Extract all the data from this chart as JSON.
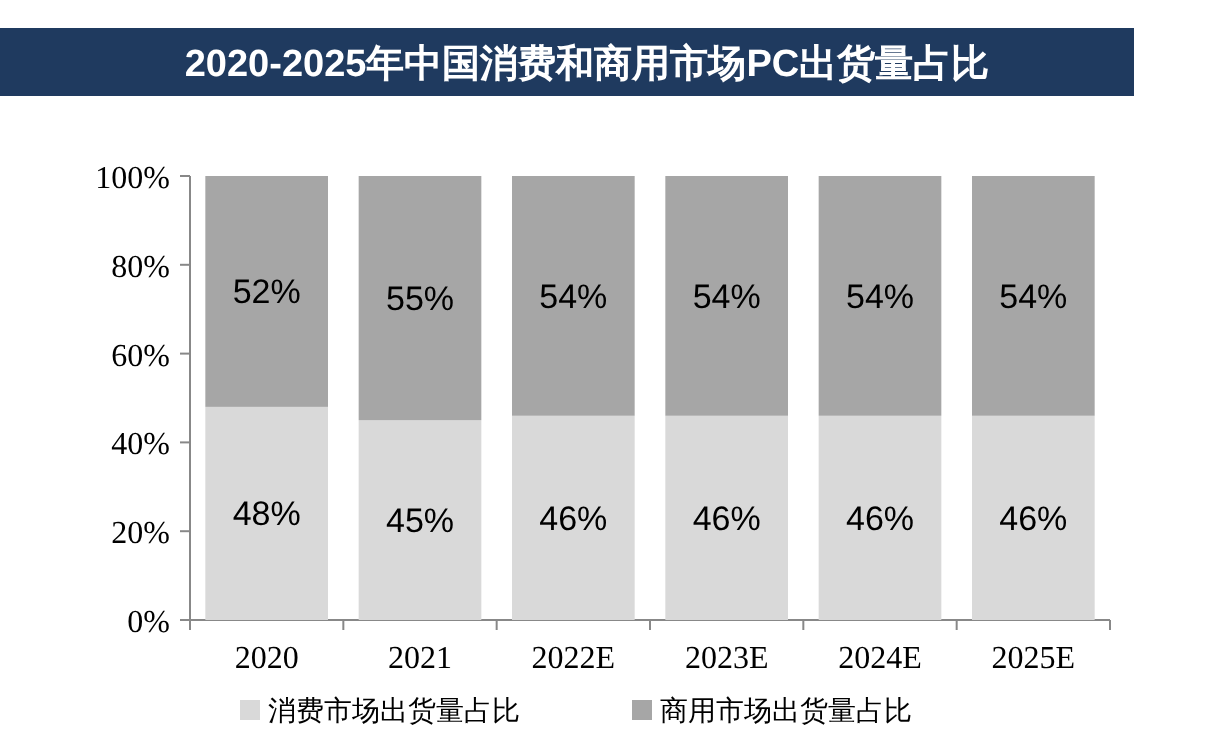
{
  "chart_data": {
    "type": "bar",
    "stacked": true,
    "title": "2020-2025年中国消费和商用市场PC出货量占比",
    "categories": [
      "2020",
      "2021",
      "2022E",
      "2023E",
      "2024E",
      "2025E"
    ],
    "series": [
      {
        "name": "消费市场出货量占比",
        "color": "#d9d9d9",
        "values": [
          48,
          45,
          46,
          46,
          46,
          46
        ],
        "value_labels": [
          "48%",
          "45%",
          "46%",
          "46%",
          "46%",
          "46%"
        ]
      },
      {
        "name": "商用市场出货量占比",
        "color": "#a6a6a6",
        "values": [
          52,
          55,
          54,
          54,
          54,
          54
        ],
        "value_labels": [
          "52%",
          "55%",
          "54%",
          "54%",
          "54%",
          "54%"
        ]
      }
    ],
    "ylim": [
      0,
      100
    ],
    "yticks": [
      {
        "value": 0,
        "label": "0%"
      },
      {
        "value": 20,
        "label": "20%"
      },
      {
        "value": 40,
        "label": "40%"
      },
      {
        "value": 60,
        "label": "60%"
      },
      {
        "value": 80,
        "label": "80%"
      },
      {
        "value": 100,
        "label": "100%"
      }
    ],
    "legend": "bottom",
    "grid": false
  }
}
